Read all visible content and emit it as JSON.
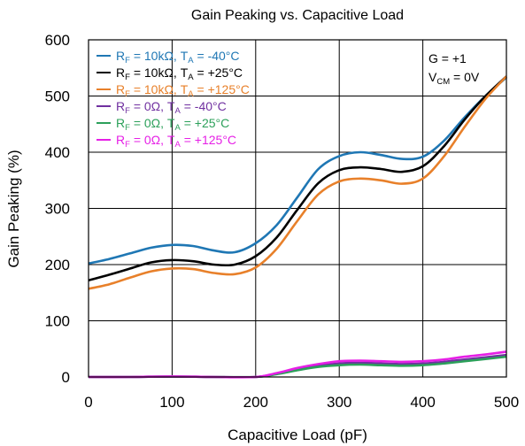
{
  "chart_data": {
    "type": "line",
    "title": "Gain Peaking vs. Capacitive Load",
    "xlabel": "Capacitive Load (pF)",
    "ylabel": "Gain Peaking (%)",
    "xlim": [
      0,
      500
    ],
    "ylim": [
      0,
      600
    ],
    "x_ticks": [
      0,
      100,
      200,
      300,
      400,
      500
    ],
    "y_ticks": [
      0,
      100,
      200,
      300,
      400,
      500,
      600
    ],
    "x_tick_labels": [
      "0",
      "100",
      "200",
      "300",
      "400",
      "500"
    ],
    "y_tick_labels": [
      "0",
      "100",
      "200",
      "300",
      "400",
      "500",
      "600"
    ],
    "grid": true,
    "legend_position": "top-left",
    "annotations": {
      "gain": "G = +1",
      "vcm_prefix": "V",
      "vcm_sub": "CM",
      "vcm_suffix": " = 0V"
    },
    "series": [
      {
        "name": "RF = 10kΩ, TA = -40°C",
        "legend": {
          "p1": "R",
          "s1": "F",
          "p2": " = 10kΩ, T",
          "s2": "A",
          "p3": " = -40°C"
        },
        "color": "#1f77b4",
        "x": [
          0,
          25,
          50,
          75,
          100,
          125,
          150,
          175,
          200,
          225,
          250,
          275,
          300,
          325,
          350,
          375,
          400,
          425,
          450,
          475,
          500
        ],
        "y": [
          202,
          210,
          220,
          230,
          235,
          233,
          225,
          222,
          238,
          270,
          320,
          370,
          393,
          400,
          395,
          388,
          392,
          420,
          462,
          500,
          533
        ]
      },
      {
        "name": "RF = 10kΩ, TA = +25°C",
        "legend": {
          "p1": "R",
          "s1": "F",
          "p2": " = 10kΩ, T",
          "s2": "A",
          "p3": " = +25°C"
        },
        "color": "#000000",
        "x": [
          0,
          25,
          50,
          75,
          100,
          125,
          150,
          175,
          200,
          225,
          250,
          275,
          300,
          325,
          350,
          375,
          400,
          425,
          450,
          475,
          500
        ],
        "y": [
          172,
          182,
          193,
          204,
          208,
          206,
          200,
          200,
          215,
          248,
          298,
          345,
          368,
          373,
          370,
          365,
          375,
          410,
          458,
          500,
          535
        ]
      },
      {
        "name": "RF = 10kΩ, TA = +125°C",
        "legend": {
          "p1": "R",
          "s1": "F",
          "p2": " = 10kΩ, T",
          "s2": "A",
          "p3": " = +125°C"
        },
        "color": "#e8802a",
        "x": [
          0,
          25,
          50,
          75,
          100,
          125,
          150,
          175,
          200,
          225,
          250,
          275,
          300,
          325,
          350,
          375,
          400,
          425,
          450,
          475,
          500
        ],
        "y": [
          157,
          165,
          177,
          188,
          193,
          192,
          185,
          183,
          195,
          228,
          278,
          325,
          348,
          353,
          350,
          344,
          353,
          392,
          445,
          495,
          535
        ]
      },
      {
        "name": "RF = 0Ω, TA = -40°C",
        "legend": {
          "p1": "R",
          "s1": "F",
          "p2": " = 0Ω, T",
          "s2": "A",
          "p3": " = -40°C"
        },
        "color": "#7030a0",
        "x": [
          0,
          50,
          100,
          150,
          200,
          225,
          250,
          275,
          300,
          325,
          350,
          375,
          400,
          425,
          450,
          475,
          500
        ],
        "y": [
          0,
          0,
          1,
          0,
          0,
          6,
          14,
          20,
          24,
          25,
          24,
          23,
          24,
          27,
          31,
          35,
          39
        ]
      },
      {
        "name": "RF = 0Ω, TA = +25°C",
        "legend": {
          "p1": "R",
          "s1": "F",
          "p2": " = 0Ω, T",
          "s2": "A",
          "p3": " = +25°C"
        },
        "color": "#2ca05a",
        "x": [
          0,
          50,
          100,
          150,
          200,
          225,
          250,
          275,
          300,
          325,
          350,
          375,
          400,
          425,
          450,
          475,
          500
        ],
        "y": [
          0,
          0,
          1,
          0,
          0,
          5,
          12,
          18,
          21,
          22,
          21,
          20,
          21,
          24,
          28,
          32,
          36
        ]
      },
      {
        "name": "RF = 0Ω, TA = +125°C",
        "legend": {
          "p1": "R",
          "s1": "F",
          "p2": " = 0Ω, T",
          "s2": "A",
          "p3": " = +125°C"
        },
        "color": "#e61fe6",
        "x": [
          0,
          50,
          100,
          150,
          200,
          225,
          250,
          275,
          300,
          325,
          350,
          375,
          400,
          425,
          450,
          475,
          500
        ],
        "y": [
          0,
          0,
          1,
          0,
          0,
          7,
          16,
          23,
          28,
          29,
          28,
          27,
          28,
          31,
          36,
          40,
          45
        ]
      }
    ]
  }
}
